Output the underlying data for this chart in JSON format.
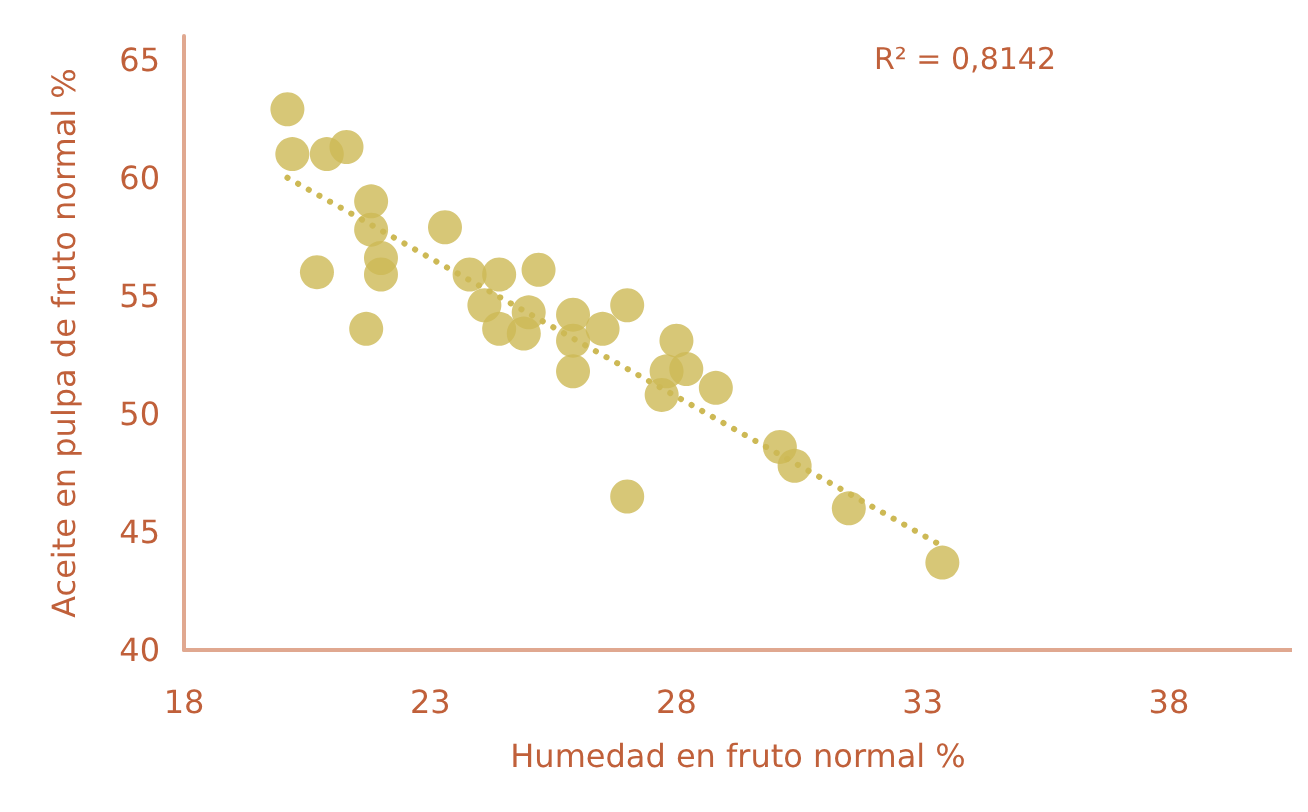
{
  "chart_data": {
    "type": "scatter",
    "xlabel": "Humedad en fruto normal %",
    "ylabel": "Aceite en pulpa de fruto normal %",
    "annotations": [
      "R² = 0,8142"
    ],
    "xlim": [
      18,
      40.5
    ],
    "xticks": [
      18,
      23,
      28,
      33,
      38
    ],
    "ylim": [
      40,
      66
    ],
    "yticks": [
      40,
      45,
      50,
      55,
      60,
      65
    ],
    "grid": false,
    "marker": "circle",
    "series": [
      {
        "color": "#cdb955",
        "x": [
          20.1,
          20.2,
          20.9,
          21.3,
          20.7,
          21.8,
          21.8,
          22.0,
          22.0,
          21.7,
          23.3,
          23.8,
          24.4,
          25.2,
          24.1,
          24.4,
          25.0,
          24.9,
          25.9,
          25.9,
          25.9,
          26.5,
          27.0,
          27.0,
          28.0,
          27.8,
          28.2,
          27.7,
          28.8,
          30.1,
          30.4,
          31.5,
          33.4
        ],
        "values": [
          62.9,
          61.0,
          61.0,
          61.3,
          56.0,
          59.0,
          57.8,
          56.6,
          55.9,
          53.6,
          57.9,
          55.9,
          55.9,
          56.1,
          54.6,
          53.6,
          54.3,
          53.4,
          54.2,
          53.1,
          51.8,
          53.6,
          54.6,
          46.5,
          53.1,
          51.8,
          51.9,
          50.8,
          51.1,
          48.6,
          47.8,
          46.0,
          43.7
        ]
      },
      {
        "type": "line",
        "color": "#cdb955",
        "line_style": "dotted",
        "marker": "none",
        "x": [
          20.1,
          33.4
        ],
        "values": [
          60.0,
          44.4
        ]
      }
    ]
  }
}
